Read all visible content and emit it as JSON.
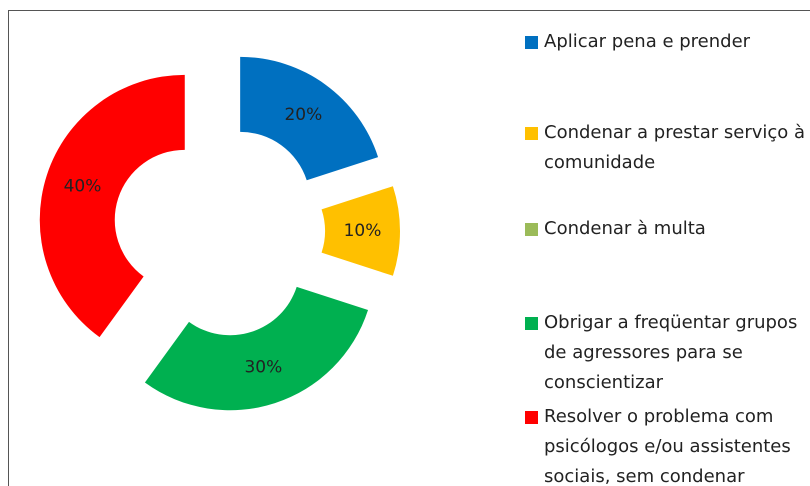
{
  "chart_data": {
    "type": "donut",
    "categories": [
      "Aplicar pena e prender",
      "Condenar a prestar serviço à comunidade",
      "Condenar à multa",
      "Obrigar a freqüentar grupos de agressores para se conscientizar",
      "Resolver o problema com psicólogos e/ou assistentes sociais, sem condenar"
    ],
    "values": [
      20,
      10,
      0,
      30,
      40
    ],
    "value_labels": [
      "20%",
      "10%",
      null,
      "30%",
      "40%"
    ],
    "colors": [
      "#0070C0",
      "#FFC000",
      "#9BBB59",
      "#00B050",
      "#FF0000"
    ],
    "legend": "right"
  }
}
